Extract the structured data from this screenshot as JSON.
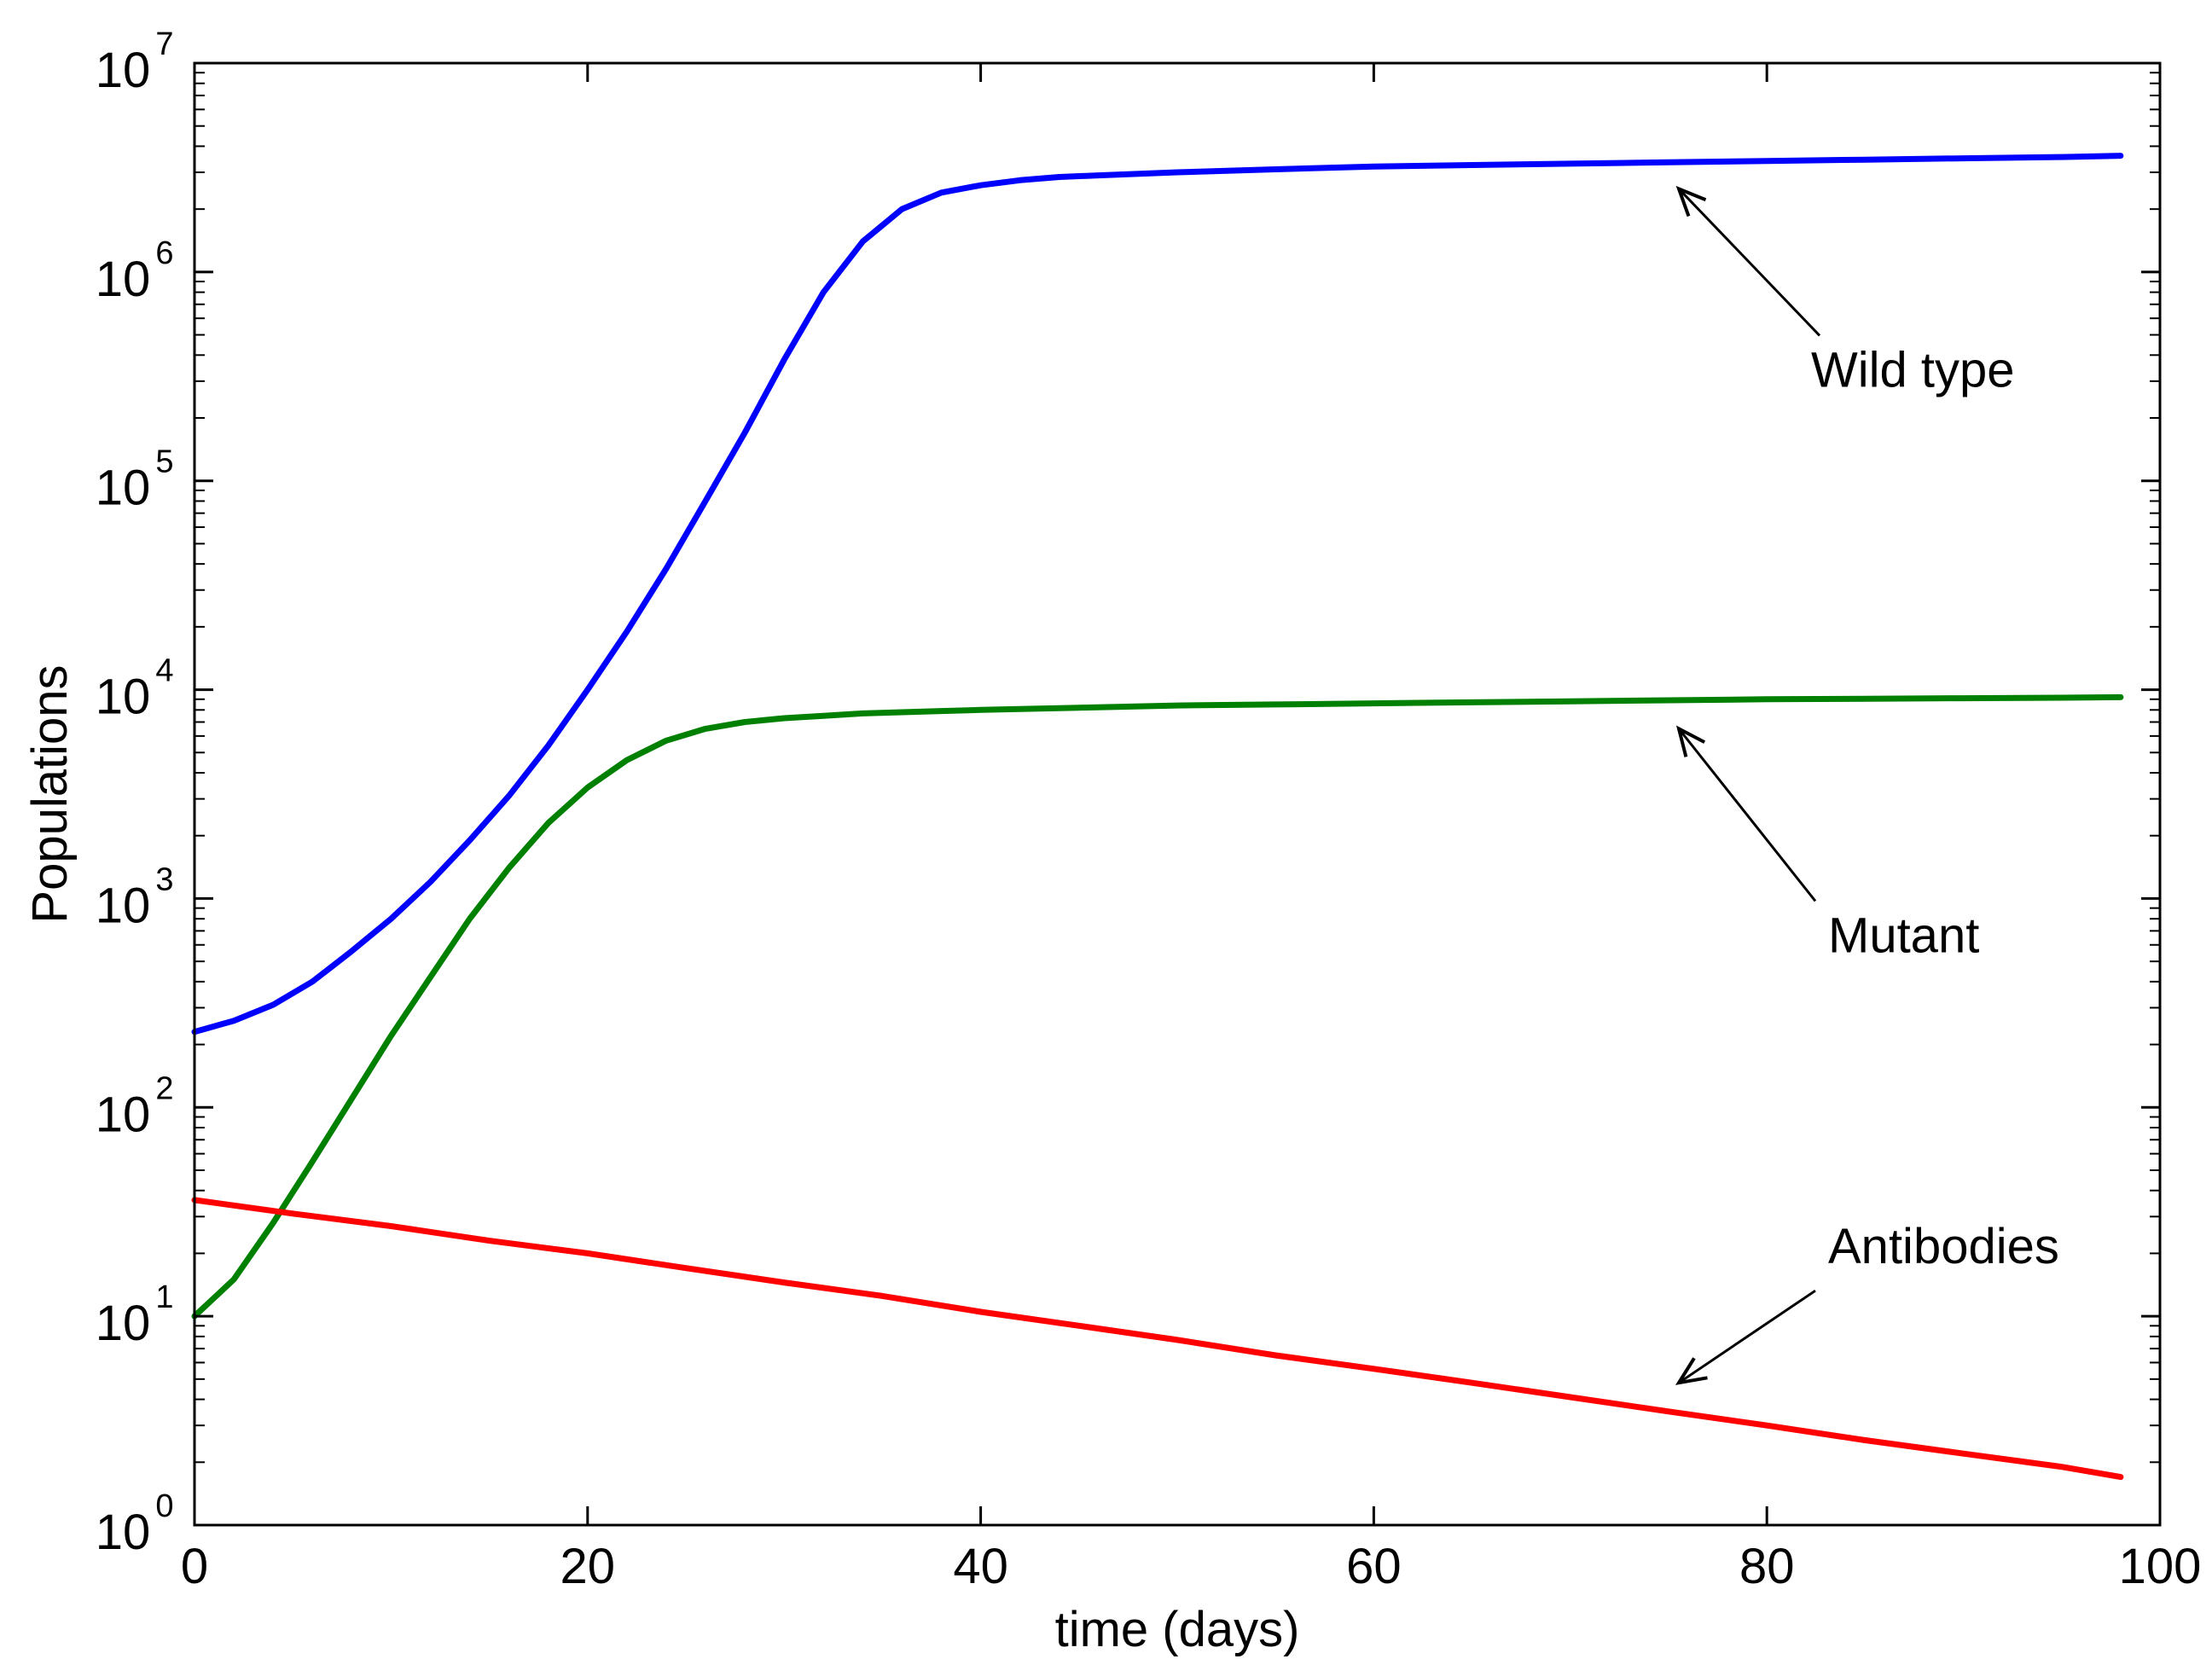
{
  "chart_data": {
    "type": "line",
    "title": "",
    "xlabel": "time (days)",
    "ylabel": "Populations",
    "xlim": [
      0,
      100
    ],
    "ylim": [
      1,
      10000000
    ],
    "yscale": "log",
    "grid": false,
    "legend": "none",
    "x_ticks": [
      0,
      20,
      40,
      60,
      80,
      100
    ],
    "x_tick_labels": [
      "0",
      "20",
      "40",
      "60",
      "80",
      "100"
    ],
    "y_ticks": [
      1,
      10,
      100,
      1000,
      10000,
      100000,
      1000000,
      10000000
    ],
    "y_tick_labels": [
      {
        "base": "10",
        "exp": "0"
      },
      {
        "base": "10",
        "exp": "1"
      },
      {
        "base": "10",
        "exp": "2"
      },
      {
        "base": "10",
        "exp": "3"
      },
      {
        "base": "10",
        "exp": "4"
      },
      {
        "base": "10",
        "exp": "5"
      },
      {
        "base": "10",
        "exp": "6"
      },
      {
        "base": "10",
        "exp": "7"
      }
    ],
    "series": [
      {
        "name": "Wild type",
        "color": "#0000ff",
        "x": [
          0,
          2,
          4,
          6,
          8,
          10,
          12,
          14,
          16,
          18,
          20,
          22,
          24,
          26,
          28,
          30,
          32,
          34,
          36,
          38,
          40,
          42,
          44,
          46,
          50,
          55,
          60,
          65,
          70,
          75,
          80,
          85,
          90,
          95,
          98
        ],
        "y": [
          230,
          260,
          310,
          400,
          560,
          800,
          1200,
          1900,
          3100,
          5400,
          10000,
          19000,
          38000,
          80000,
          170000,
          380000,
          800000,
          1400000,
          2000000,
          2400000,
          2600000,
          2750000,
          2850000,
          2900000,
          3000000,
          3100000,
          3200000,
          3250000,
          3300000,
          3350000,
          3400000,
          3450000,
          3500000,
          3550000,
          3600000
        ]
      },
      {
        "name": "Mutant",
        "color": "#008000",
        "x": [
          0,
          2,
          4,
          6,
          8,
          10,
          12,
          14,
          16,
          18,
          20,
          22,
          24,
          26,
          28,
          30,
          32,
          34,
          36,
          38,
          40,
          45,
          50,
          55,
          60,
          65,
          70,
          75,
          80,
          85,
          90,
          95,
          98
        ],
        "y": [
          10,
          15,
          28,
          55,
          110,
          220,
          420,
          800,
          1400,
          2300,
          3400,
          4600,
          5700,
          6500,
          7000,
          7300,
          7500,
          7700,
          7800,
          7900,
          8000,
          8200,
          8400,
          8500,
          8600,
          8700,
          8800,
          8900,
          9000,
          9050,
          9100,
          9150,
          9200
        ]
      },
      {
        "name": "Antibodies",
        "color": "#ff0000",
        "x": [
          0,
          5,
          10,
          15,
          20,
          25,
          30,
          35,
          40,
          45,
          50,
          55,
          60,
          65,
          70,
          75,
          80,
          85,
          90,
          95,
          98
        ],
        "y": [
          36,
          31,
          27,
          23,
          20,
          17,
          14.5,
          12.5,
          10.5,
          9,
          7.7,
          6.5,
          5.6,
          4.8,
          4.1,
          3.5,
          3.0,
          2.55,
          2.2,
          1.9,
          1.7
        ]
      }
    ],
    "annotations": [
      {
        "text": "Wild type",
        "target_x": 75,
        "target_y": 2500000
      },
      {
        "text": "Mutant",
        "target_x": 75,
        "target_y": 6500
      },
      {
        "text": "Antibodies",
        "target_x": 75,
        "target_y": 4.8
      }
    ]
  }
}
